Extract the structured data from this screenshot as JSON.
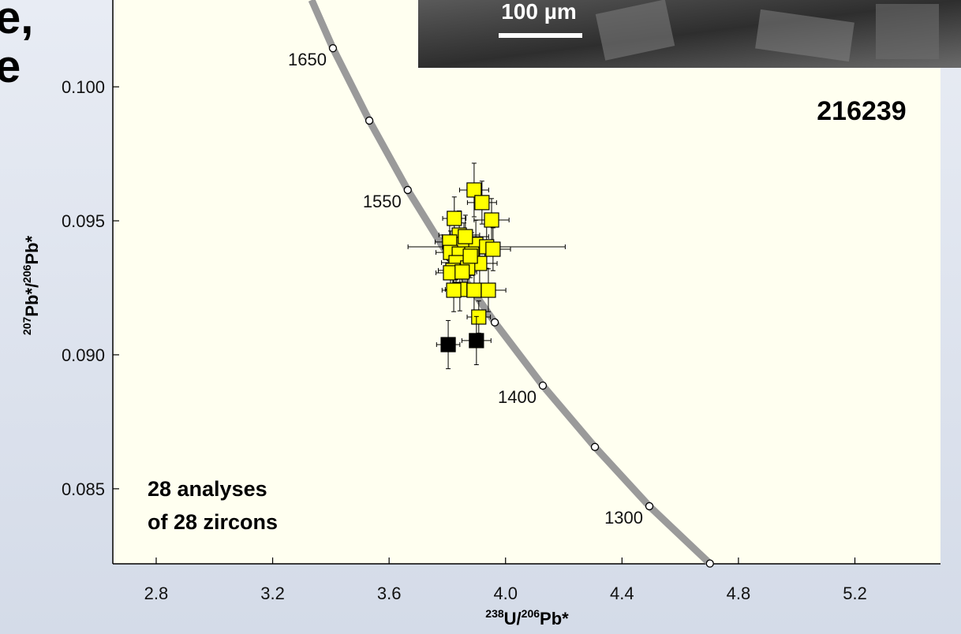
{
  "slide_fragments": [
    "e,",
    "e"
  ],
  "inset_label": "100 µm",
  "chart_data": {
    "type": "scatter",
    "annotations": [
      "216239",
      "28 analyses",
      "of 28 zircons"
    ],
    "x_label_parts": [
      "238",
      "U/",
      "206",
      "Pb*"
    ],
    "y_label_parts": [
      "207",
      "Pb*/",
      "206",
      "Pb*"
    ],
    "xlim": [
      2.651,
      5.494
    ],
    "ylim": [
      0.0822,
      0.10324
    ],
    "xticks": [
      2.8,
      3.2,
      3.6,
      {
        "value": 4,
        "label": "4.0"
      },
      4.4,
      4.8,
      5.2
    ],
    "yticks": [
      {
        "value": 0.085,
        "label": "0.085"
      },
      {
        "value": 0.09,
        "label": "0.090"
      },
      {
        "value": 0.095,
        "label": "0.095"
      },
      {
        "value": 0.1,
        "label": "0.100"
      }
    ],
    "concordia": {
      "color": "#9a9a9a",
      "x": [
        3.334,
        3.407,
        3.532,
        3.664,
        3.808,
        3.963,
        4.128,
        4.307,
        4.494,
        4.702
      ],
      "values": [
        0.10324,
        0.10144,
        0.09874,
        0.09615,
        0.09362,
        0.09121,
        0.08885,
        0.08656,
        0.08435,
        0.08221
      ]
    },
    "age_markers": {
      "x": [
        3.407,
        3.532,
        3.664,
        3.808,
        3.963,
        4.128,
        4.307,
        4.494,
        4.702
      ],
      "values": [
        0.10144,
        0.09874,
        0.09615,
        0.09362,
        0.09121,
        0.08885,
        0.08656,
        0.08435,
        0.08221
      ],
      "labels": [
        1650,
        null,
        1550,
        null,
        null,
        1400,
        null,
        1300,
        null
      ]
    },
    "series": [
      {
        "color": "#ffff00",
        "x": [
          3.892,
          3.919,
          3.824,
          3.952,
          3.841,
          3.808,
          3.857,
          3.898,
          3.935,
          3.957,
          3.811,
          3.841,
          3.884,
          3.83,
          3.911,
          3.87,
          3.819,
          3.811,
          3.843,
          3.822,
          3.892,
          3.941,
          3.908,
          3.862,
          3.879,
          3.851
        ],
        "values": [
          0.09615,
          0.09568,
          0.09509,
          0.09503,
          0.09447,
          0.09421,
          0.09412,
          0.09412,
          0.09403,
          0.09394,
          0.09382,
          0.09376,
          0.09376,
          0.09344,
          0.09341,
          0.09324,
          0.09315,
          0.09306,
          0.09244,
          0.09241,
          0.09241,
          0.09241,
          0.09141,
          0.09441,
          0.09368,
          0.09309
        ],
        "xerr": [
          0.05,
          0.05,
          0.04,
          0.06,
          0.07,
          0.05,
          0.05,
          0.06,
          0.27,
          0.06,
          0.05,
          0.05,
          0.05,
          0.05,
          0.06,
          0.05,
          0.05,
          0.05,
          0.05,
          0.04,
          0.05,
          0.06,
          0.04,
          0.08,
          0.05,
          0.05
        ],
        "yerr": [
          0.001,
          0.0008,
          0.0008,
          0.0008,
          0.0009,
          0.0008,
          0.0008,
          0.0009,
          0.0008,
          0.0008,
          0.0008,
          0.0008,
          0.0008,
          0.0008,
          0.0008,
          0.0008,
          0.0008,
          0.0008,
          0.0008,
          0.0008,
          0.0008,
          0.0008,
          0.0006,
          0.0008,
          0.0008,
          0.0008
        ]
      },
      {
        "color": "#000000",
        "x": [
          3.803,
          3.9
        ],
        "values": [
          0.09038,
          0.09053
        ],
        "xerr": [
          0.04,
          0.05
        ],
        "yerr": [
          0.0009,
          0.0009
        ]
      }
    ]
  }
}
